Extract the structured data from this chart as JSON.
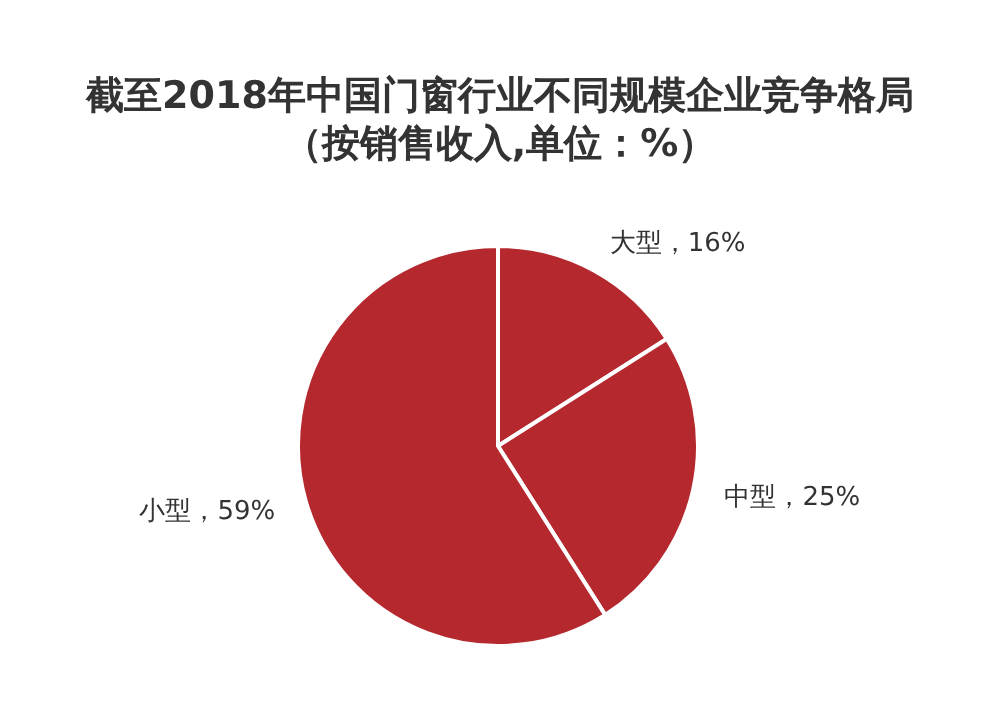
{
  "chart_data": {
    "type": "pie",
    "title": "截至2018年中国门窗行业不同规模企业竞争格局",
    "subtitle": "（按销售收入,单位：%）",
    "categories": [
      "大型",
      "中型",
      "小型"
    ],
    "values": [
      16,
      25,
      59
    ],
    "colors": [
      "#b5282e",
      "#b5282e",
      "#b5282e"
    ],
    "value_labels": [
      "，16%",
      "，25%",
      "，59%"
    ]
  }
}
